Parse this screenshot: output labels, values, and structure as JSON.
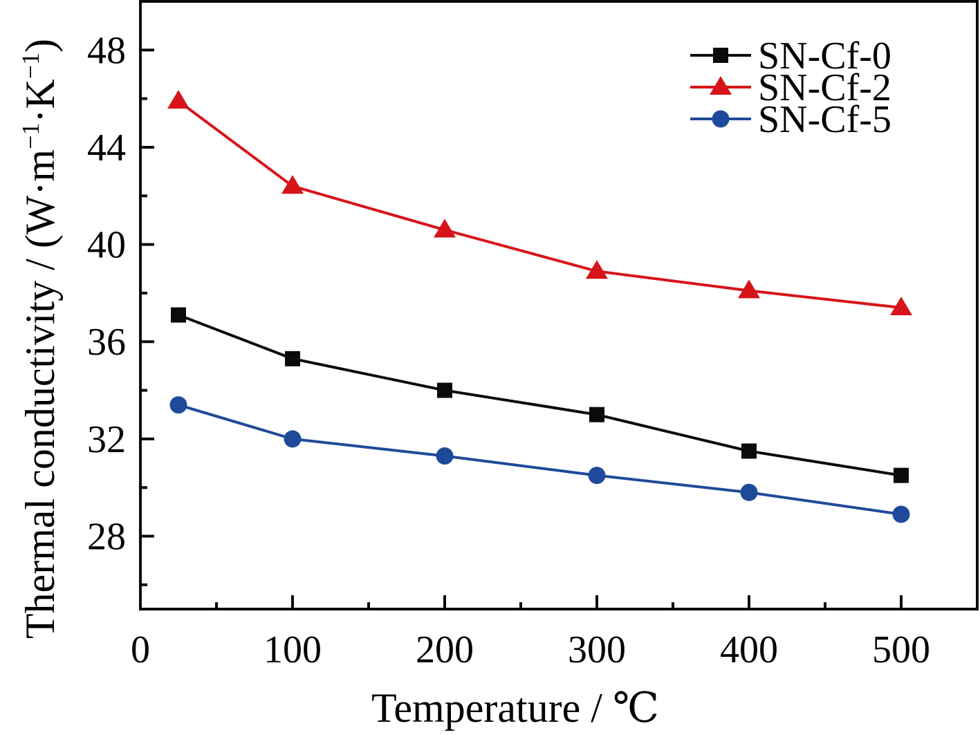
{
  "chart_data": {
    "type": "line",
    "title": "",
    "xlabel": "Temperature / ℃",
    "ylabel": "Thermal conductivity / (W·m⁻¹·K⁻¹)",
    "ylabel_parts": {
      "main": "Thermal conductivity / (W·m",
      "sup1": "−1",
      "mid": "·K",
      "sup2": "−1",
      "end": ")"
    },
    "xlim": [
      0,
      550
    ],
    "ylim": [
      25,
      50
    ],
    "x_major_ticks": [
      0,
      100,
      200,
      300,
      400,
      500
    ],
    "x_minor_ticks": [
      50,
      150,
      250,
      350,
      450
    ],
    "x_tick_labels": [
      "0",
      "100",
      "200",
      "300",
      "400",
      "500"
    ],
    "y_major_ticks": [
      28,
      32,
      36,
      40,
      44,
      48
    ],
    "y_minor_ticks": [
      26,
      30,
      34,
      38,
      42,
      46
    ],
    "y_tick_labels": [
      "28",
      "32",
      "36",
      "40",
      "44",
      "48"
    ],
    "grid": false,
    "legend_position": "top-right",
    "x": [
      25,
      100,
      200,
      300,
      400,
      500
    ],
    "series": [
      {
        "name": "SN-Cf-0",
        "marker": "square",
        "color": "#0a0a0a",
        "values": [
          37.1,
          35.3,
          34.0,
          33.0,
          31.5,
          30.5
        ]
      },
      {
        "name": "SN-Cf-2",
        "marker": "triangle",
        "color": "#d7141a",
        "values": [
          45.9,
          42.4,
          40.6,
          38.9,
          38.1,
          37.4
        ]
      },
      {
        "name": "SN-Cf-5",
        "marker": "circle",
        "color": "#1f4a9a",
        "values": [
          33.4,
          32.0,
          31.3,
          30.5,
          29.8,
          28.9
        ]
      }
    ]
  }
}
